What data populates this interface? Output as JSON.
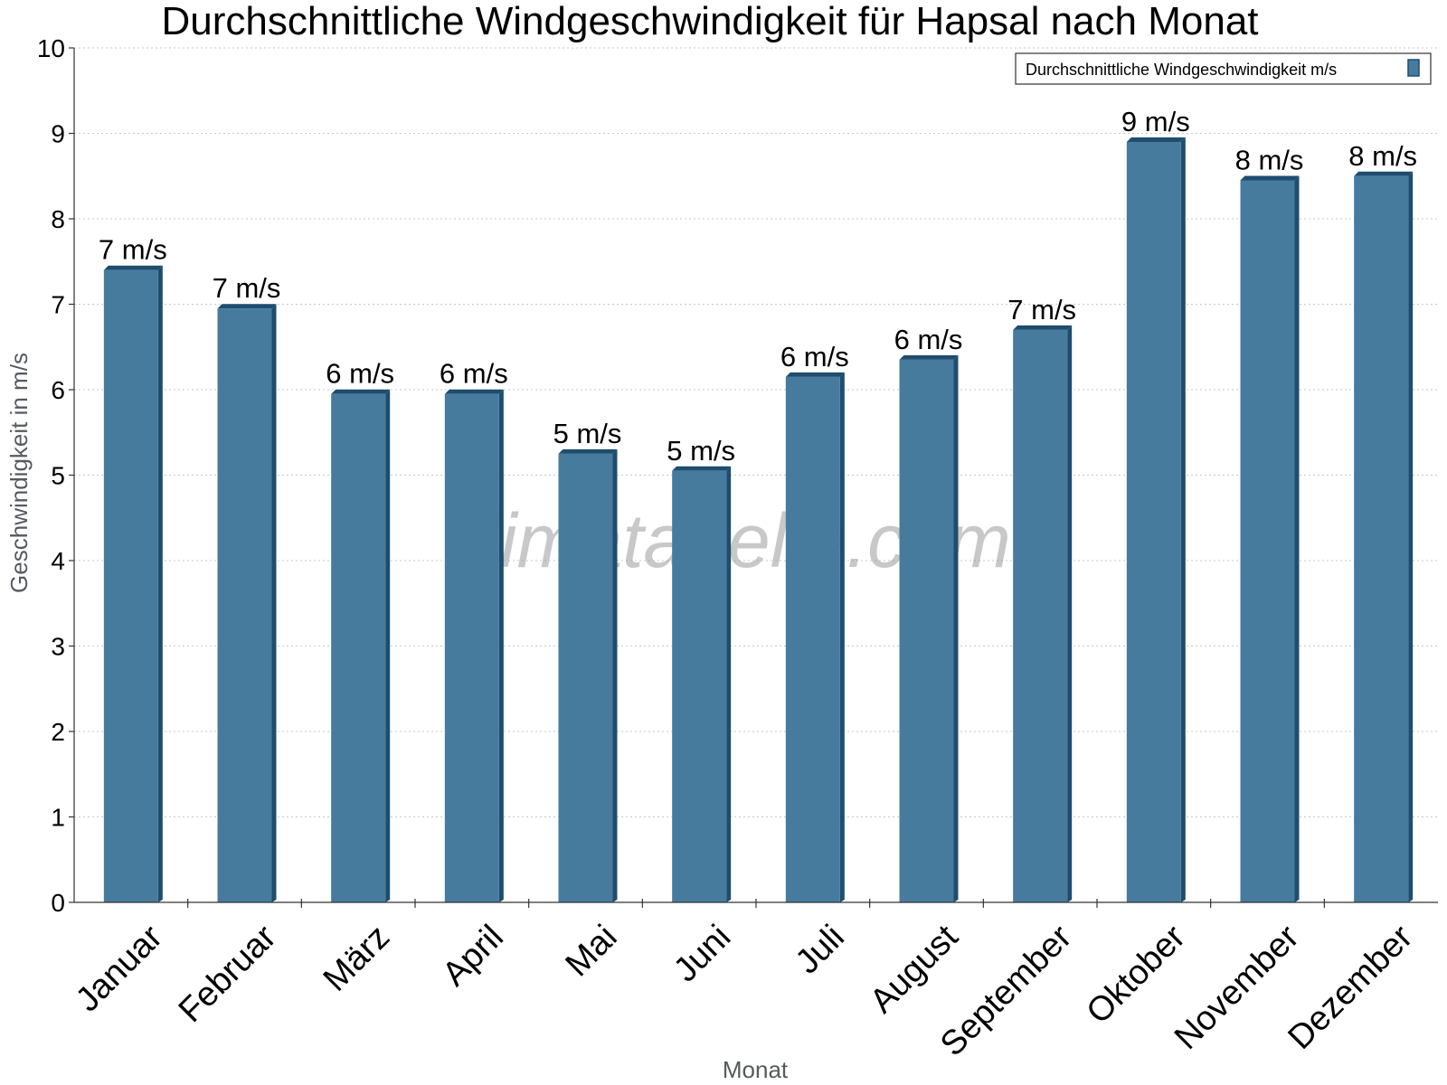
{
  "chart_data": {
    "type": "bar",
    "title": "Durchschnittliche Windgeschwindigkeit für Hapsal nach Monat",
    "xlabel": "Monat",
    "ylabel": "Geschwindigkeit in m/s",
    "ylim": [
      0,
      10
    ],
    "yticks": [
      "0",
      "1",
      "2",
      "3",
      "4",
      "5",
      "6",
      "7",
      "8",
      "9",
      "10"
    ],
    "grid": true,
    "legend_position": "top-right",
    "categories": [
      "Januar",
      "Februar",
      "März",
      "April",
      "Mai",
      "Juni",
      "Juli",
      "August",
      "September",
      "Oktober",
      "November",
      "Dezember"
    ],
    "series": [
      {
        "name": "Durchschnittliche Windgeschwindigkeit m/s",
        "values": [
          7.4,
          6.95,
          5.95,
          5.95,
          5.25,
          5.05,
          6.15,
          6.35,
          6.7,
          8.9,
          8.45,
          8.5
        ],
        "labels": [
          "7 m/s",
          "7 m/s",
          "6 m/s",
          "6 m/s",
          "5 m/s",
          "5 m/s",
          "6 m/s",
          "6 m/s",
          "7 m/s",
          "9 m/s",
          "8 m/s",
          "8 m/s"
        ]
      }
    ],
    "colors": {
      "bar": "#477b9e",
      "bar_side": "#1e4d6e"
    },
    "watermark": "klimatabelle.com"
  }
}
